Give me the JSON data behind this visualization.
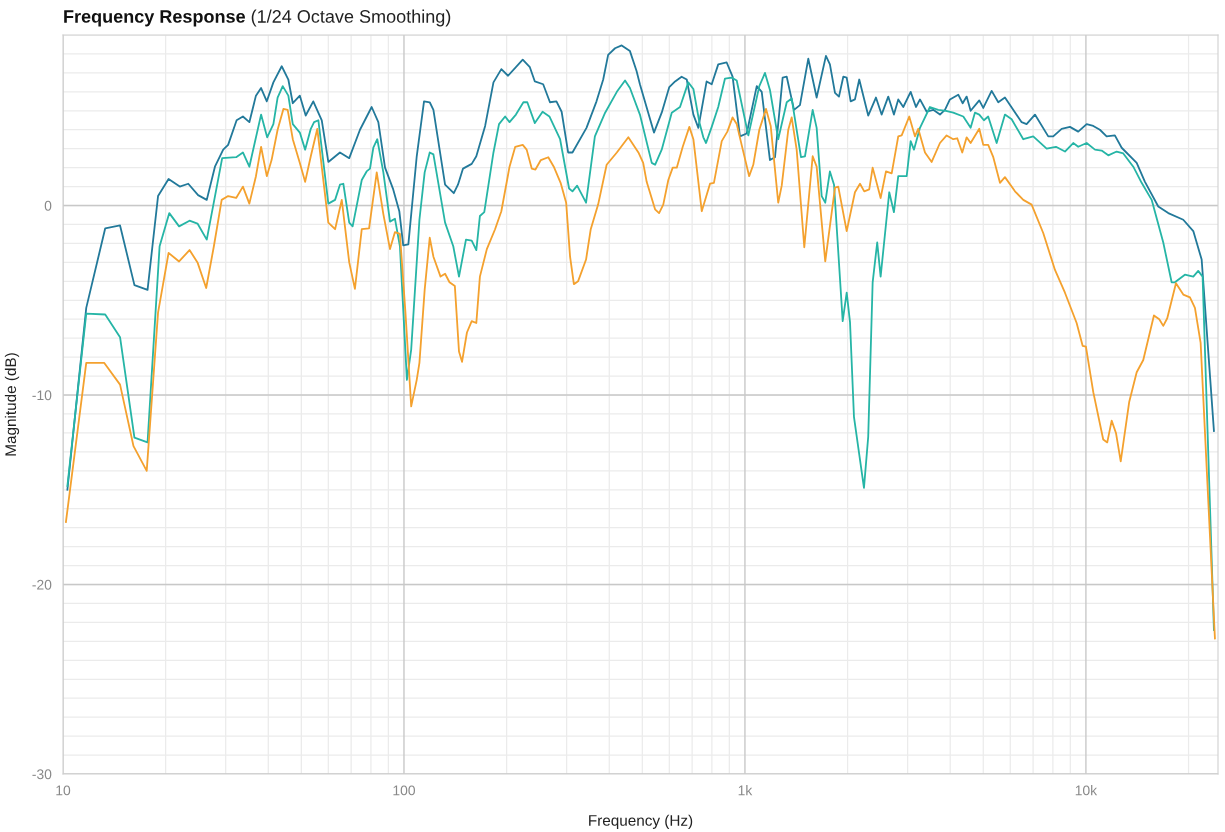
{
  "chart_data": {
    "type": "line",
    "title": "Frequency Response",
    "subtitle": "(1/24 Octave Smoothing)",
    "xlabel": "Frequency (Hz)",
    "ylabel": "Magnitude (dB)",
    "log": "x",
    "grid": true,
    "xlim": [
      10,
      24400
    ],
    "ylim": [
      -30,
      9
    ],
    "xticks": [
      10,
      100,
      {
        "value": 1000,
        "label": "1k"
      },
      {
        "value": 10000,
        "label": "10k"
      }
    ],
    "yticks": [
      -30,
      -20,
      -10,
      0
    ],
    "series": [
      {
        "color": "#22799a",
        "x": [
          10.3,
          11.7,
          13.3,
          14.7,
          16.2,
          17.7,
          19.0,
          20.4,
          22.0,
          23.3,
          24.9,
          26.4,
          27.9,
          29.5,
          30.5,
          32.3,
          33.7,
          35.2,
          36.8,
          38.1,
          39.6,
          41.4,
          43.8,
          45.8,
          47.2,
          49.5,
          51.5,
          54.2,
          57.4,
          60.0,
          64.9,
          69.1,
          74.3,
          80.4,
          84.1,
          88.0,
          93.0,
          96.9,
          99.5,
          103,
          109,
          114.5,
          119,
          122,
          132,
          140,
          144,
          149,
          158,
          163,
          173,
          183,
          193,
          202,
          223,
          234,
          242,
          256,
          268,
          280,
          290,
          303,
          312,
          343,
          367,
          384,
          397,
          416,
          435,
          460,
          481,
          492,
          541,
          570,
          600,
          624,
          652,
          675,
          706,
          730,
          772,
          799,
          835,
          884,
          920,
          967,
          1012,
          1083,
          1120,
          1184,
          1225,
          1290,
          1326,
          1393,
          1450,
          1534,
          1623,
          1728,
          1775,
          1837,
          1887,
          1943,
          1988,
          2042,
          2102,
          2164,
          2299,
          2422,
          2517,
          2632,
          2735,
          2816,
          2913,
          3062,
          3174,
          3261,
          3412,
          3567,
          3732,
          3860,
          3992,
          4223,
          4351,
          4469,
          4591,
          4867,
          5000,
          5291,
          5533,
          5788,
          6479,
          6699,
          7088,
          7754,
          8020,
          8488,
          8978,
          9495,
          10050,
          10510,
          10990,
          11500,
          12160,
          12730,
          14090,
          14900,
          16300,
          17440,
          19300,
          20650,
          21850,
          23740
        ],
        "values": [
          -15.0,
          -5.4,
          -1.2,
          -1.05,
          -4.2,
          -4.45,
          0.5,
          1.4,
          1.0,
          1.15,
          0.55,
          0.3,
          2.05,
          2.95,
          3.2,
          4.5,
          4.7,
          4.4,
          5.8,
          6.2,
          5.5,
          6.5,
          7.35,
          6.65,
          5.4,
          5.8,
          4.75,
          5.5,
          4.5,
          2.3,
          2.8,
          2.5,
          4.0,
          5.2,
          4.4,
          2.0,
          0.85,
          -0.3,
          -2.1,
          -2.05,
          2.6,
          5.5,
          5.45,
          5.05,
          1.1,
          0.65,
          1.1,
          1.95,
          2.2,
          2.6,
          4.2,
          6.5,
          7.2,
          6.85,
          7.7,
          7.3,
          6.55,
          6.4,
          5.45,
          5.5,
          4.95,
          2.8,
          2.8,
          4.1,
          5.5,
          6.65,
          7.95,
          8.3,
          8.45,
          8.15,
          7.1,
          6.4,
          3.85,
          4.9,
          6.25,
          6.55,
          6.8,
          6.65,
          4.8,
          4.1,
          6.55,
          6.4,
          7.45,
          7.55,
          6.8,
          3.65,
          3.8,
          6.3,
          6.0,
          2.4,
          2.55,
          6.75,
          6.8,
          5.05,
          5.3,
          7.75,
          5.7,
          7.9,
          7.45,
          5.95,
          5.75,
          6.8,
          6.75,
          5.5,
          5.6,
          6.65,
          4.75,
          5.7,
          4.8,
          5.75,
          4.8,
          5.6,
          5.2,
          6.0,
          5.2,
          5.6,
          4.95,
          5.05,
          4.8,
          5.05,
          5.6,
          5.85,
          5.4,
          5.75,
          5.0,
          5.55,
          5.15,
          6.05,
          5.45,
          5.7,
          4.4,
          4.3,
          4.8,
          3.65,
          3.65,
          4.05,
          4.15,
          3.9,
          4.3,
          4.2,
          4.0,
          3.65,
          3.7,
          3.05,
          2.25,
          1.25,
          -0.05,
          -0.4,
          -0.75,
          -1.35,
          -2.85,
          -11.9
        ]
      },
      {
        "color": "#26b5a6",
        "x": [
          10.3,
          11.7,
          13.3,
          14.7,
          16.2,
          17.7,
          19.2,
          20.5,
          21.9,
          23.5,
          24.8,
          26.4,
          29.3,
          32.2,
          33.7,
          35.2,
          38.1,
          39.7,
          41.4,
          42.6,
          44.1,
          45.8,
          47.2,
          49.5,
          51.3,
          53.3,
          54.5,
          56.1,
          60.0,
          62.8,
          64.9,
          66.4,
          69.1,
          70.7,
          75.2,
          77.7,
          79.5,
          81.3,
          83.5,
          87.0,
          91.0,
          94.1,
          97.3,
          102,
          105,
          111,
          115,
          119,
          122,
          132,
          139.5,
          145,
          152,
          158,
          163,
          167,
          172,
          183,
          190,
          198,
          204,
          213,
          224,
          230,
          242,
          255,
          267,
          287,
          305,
          312,
          322,
          342,
          363,
          389,
          421,
          445,
          460,
          492,
          533,
          545,
          570,
          610,
          645,
          682,
          706,
          735,
          755,
          769,
          799,
          835,
          874,
          914,
          946,
          1023,
          1102,
          1145,
          1184,
          1252,
          1326,
          1371,
          1460,
          1500,
          1580,
          1623,
          1679,
          1720,
          1775,
          1825,
          1866,
          1935,
          1988,
          2033,
          2088,
          2234,
          2299,
          2369,
          2443,
          2500,
          2650,
          2735,
          2816,
          2981,
          3062,
          3131,
          3261,
          3488,
          3689,
          3886,
          4082,
          4369,
          4591,
          4726,
          4867,
          5022,
          5169,
          5473,
          5788,
          6057,
          6551,
          7006,
          7671,
          8170,
          8680,
          9179,
          9495,
          10050,
          10630,
          11120,
          11630,
          12310,
          12870,
          13770,
          14570,
          15590,
          16860,
          17840,
          18240,
          19510,
          20650,
          21350,
          21990,
          23740
        ],
        "values": [
          -14.8,
          -5.7,
          -5.75,
          -6.95,
          -12.25,
          -12.5,
          -2.15,
          -0.4,
          -1.1,
          -0.8,
          -0.95,
          -1.8,
          2.5,
          2.55,
          2.8,
          2.05,
          4.8,
          3.6,
          4.3,
          5.7,
          6.3,
          5.8,
          4.3,
          3.85,
          2.95,
          4.05,
          4.4,
          4.5,
          0.1,
          0.3,
          1.1,
          1.15,
          -0.9,
          -1.1,
          1.35,
          1.8,
          1.95,
          3.05,
          3.5,
          1.75,
          -0.85,
          -0.7,
          -2.15,
          -9.2,
          -7.6,
          -0.75,
          1.75,
          2.8,
          2.7,
          -0.9,
          -2.15,
          -3.75,
          -1.8,
          -1.85,
          -2.35,
          -0.55,
          -0.35,
          2.8,
          4.3,
          4.7,
          4.4,
          4.8,
          5.45,
          5.45,
          4.35,
          4.95,
          4.7,
          3.5,
          0.9,
          0.75,
          1.05,
          0.15,
          3.65,
          4.9,
          6.0,
          6.6,
          6.2,
          4.8,
          2.25,
          2.15,
          2.95,
          4.9,
          5.2,
          6.5,
          6.15,
          4.4,
          3.6,
          3.3,
          4.15,
          5.2,
          6.7,
          6.75,
          6.6,
          3.7,
          6.3,
          7.0,
          6.1,
          3.5,
          5.45,
          5.65,
          2.55,
          2.6,
          5.05,
          4.1,
          0.5,
          0.15,
          1.8,
          1.1,
          -1.65,
          -6.1,
          -4.6,
          -6.15,
          -11.15,
          -14.9,
          -12.2,
          -4.05,
          -1.95,
          -3.75,
          0.7,
          -0.35,
          1.55,
          1.55,
          3.4,
          2.95,
          4.1,
          5.2,
          5.05,
          5.0,
          4.9,
          4.7,
          4.1,
          4.9,
          4.8,
          4.5,
          4.7,
          3.3,
          4.8,
          4.55,
          3.5,
          3.65,
          3.0,
          3.1,
          2.85,
          3.3,
          3.1,
          3.3,
          2.95,
          2.9,
          2.65,
          2.85,
          2.75,
          2.05,
          1.2,
          0.3,
          -1.95,
          -4.05,
          -4.05,
          -3.65,
          -3.75,
          -3.45,
          -3.75,
          -22.4
        ]
      },
      {
        "color": "#f4a12e",
        "x": [
          10.2,
          11.7,
          13.2,
          14.7,
          16.1,
          17.6,
          19.0,
          20.4,
          21.9,
          23.5,
          24.8,
          26.3,
          27.7,
          29.2,
          30.5,
          32.2,
          33.7,
          35.2,
          36.8,
          38.1,
          39.6,
          40.9,
          42.6,
          44.3,
          45.6,
          47.2,
          49.5,
          51.3,
          53.3,
          55.7,
          60.0,
          62.8,
          65.7,
          69.1,
          71.8,
          75.2,
          79.0,
          83.2,
          87.0,
          91.0,
          94.1,
          97.3,
          101,
          105,
          109,
          111,
          115,
          119,
          122,
          128,
          132,
          136,
          141,
          145,
          148,
          153,
          158,
          163,
          167,
          175,
          185,
          193,
          204,
          212,
          223,
          229,
          237,
          243,
          252,
          265,
          275,
          288,
          299,
          307,
          315,
          324,
          342,
          353,
          371,
          393,
          421,
          455,
          487,
          503,
          515,
          545,
          560,
          576,
          596,
          614,
          631,
          657,
          687,
          706,
          747,
          790,
          811,
          855,
          888,
          920,
          946,
          978,
          1029,
          1058,
          1102,
          1153,
          1190,
          1252,
          1282,
          1340,
          1371,
          1418,
          1493,
          1580,
          1623,
          1720,
          1837,
          1878,
          1988,
          2102,
          2175,
          2238,
          2315,
          2369,
          2500,
          2592,
          2694,
          2816,
          2882,
          3033,
          3152,
          3223,
          3373,
          3529,
          3732,
          3904,
          4082,
          4194,
          4338,
          4469,
          4591,
          4867,
          5000,
          5169,
          5350,
          5597,
          5788,
          6194,
          6551,
          6931,
          7496,
          8115,
          8680,
          9393,
          9781,
          10000,
          10510,
          11240,
          11550,
          11900,
          12250,
          12650,
          13400,
          14090,
          14730,
          15830,
          16410,
          16860,
          17320,
          18370,
          19300,
          20190,
          20880,
          21700,
          23900
        ],
        "values": [
          -16.7,
          -8.3,
          -8.3,
          -9.45,
          -12.7,
          -14.0,
          -5.65,
          -2.5,
          -2.95,
          -2.35,
          -3.0,
          -4.35,
          -2.15,
          0.3,
          0.5,
          0.4,
          1.0,
          0.1,
          1.55,
          3.1,
          1.55,
          2.4,
          4.0,
          5.1,
          5.05,
          3.5,
          2.25,
          1.25,
          2.6,
          4.05,
          -0.9,
          -1.25,
          0.3,
          -3.0,
          -4.4,
          -1.25,
          -1.2,
          1.75,
          -0.45,
          -2.3,
          -1.4,
          -1.5,
          -5.65,
          -10.6,
          -9.2,
          -8.3,
          -4.45,
          -1.7,
          -2.7,
          -3.75,
          -3.6,
          -4.05,
          -4.25,
          -7.7,
          -8.25,
          -6.7,
          -6.1,
          -6.2,
          -3.75,
          -2.3,
          -1.25,
          -0.3,
          2.05,
          3.1,
          3.2,
          2.95,
          1.95,
          1.9,
          2.4,
          2.55,
          2.05,
          1.2,
          0.15,
          -2.7,
          -4.15,
          -4.0,
          -2.85,
          -1.25,
          0.05,
          2.15,
          2.8,
          3.6,
          2.8,
          2.25,
          1.25,
          -0.2,
          -0.4,
          0.05,
          1.35,
          2.0,
          2.0,
          3.1,
          4.15,
          3.5,
          -0.3,
          1.15,
          1.2,
          3.4,
          3.9,
          4.65,
          4.3,
          3.2,
          1.55,
          2.15,
          4.0,
          5.1,
          4.2,
          0.15,
          1.05,
          4.0,
          4.65,
          2.95,
          -2.2,
          2.6,
          2.05,
          -2.95,
          0.95,
          1.0,
          -1.35,
          0.7,
          1.15,
          0.75,
          0.85,
          2.0,
          0.4,
          1.8,
          1.7,
          3.65,
          3.7,
          4.7,
          3.65,
          4.05,
          2.8,
          2.3,
          3.3,
          3.7,
          3.5,
          3.55,
          2.8,
          3.6,
          3.3,
          4.05,
          3.2,
          3.2,
          2.55,
          1.2,
          1.5,
          0.75,
          0.3,
          0.05,
          -1.45,
          -3.4,
          -4.6,
          -6.2,
          -7.4,
          -7.45,
          -9.85,
          -12.35,
          -12.5,
          -11.35,
          -12.0,
          -13.5,
          -10.35,
          -8.8,
          -8.15,
          -5.8,
          -6.0,
          -6.35,
          -5.95,
          -4.1,
          -4.7,
          -4.85,
          -5.4,
          -7.25,
          -22.85
        ]
      }
    ]
  }
}
